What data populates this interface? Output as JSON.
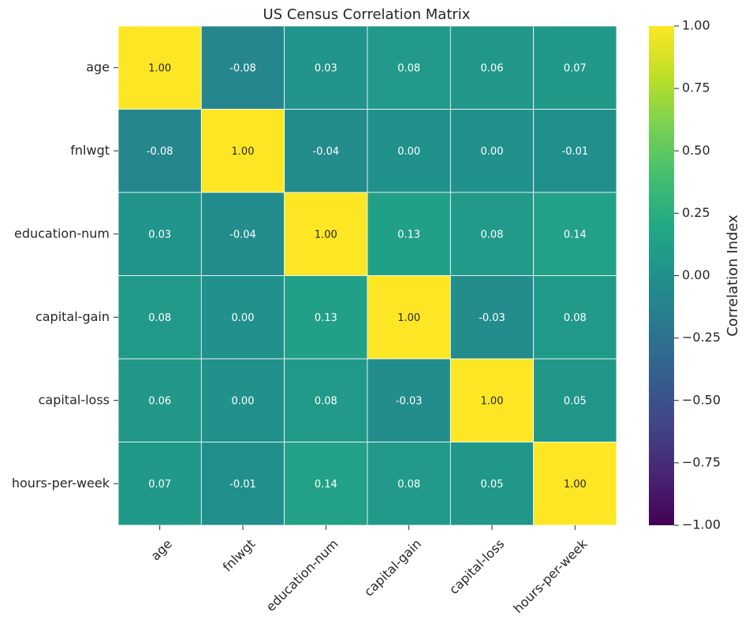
{
  "chart_data": {
    "type": "heatmap",
    "title": "US Census Correlation Matrix",
    "rows": [
      "age",
      "fnlwgt",
      "education-num",
      "capital-gain",
      "capital-loss",
      "hours-per-week"
    ],
    "columns": [
      "age",
      "fnlwgt",
      "education-num",
      "capital-gain",
      "capital-loss",
      "hours-per-week"
    ],
    "values": [
      [
        1.0,
        -0.08,
        0.03,
        0.08,
        0.06,
        0.07
      ],
      [
        -0.08,
        1.0,
        -0.04,
        -0.0,
        -0.0,
        -0.01
      ],
      [
        0.03,
        -0.04,
        1.0,
        0.13,
        0.08,
        0.14
      ],
      [
        0.08,
        -0.0,
        0.13,
        1.0,
        -0.03,
        0.08
      ],
      [
        0.06,
        -0.0,
        0.08,
        -0.03,
        1.0,
        0.05
      ],
      [
        0.07,
        -0.01,
        0.14,
        0.08,
        0.05,
        1.0
      ]
    ],
    "value_format": "0.00",
    "colormap": "viridis",
    "vmin": -1.0,
    "vmax": 1.0,
    "colorbar": {
      "label": "Correlation Index",
      "ticks": [
        "1.00",
        "0.75",
        "0.50",
        "0.25",
        "0.00",
        "−0.25",
        "−0.50",
        "−0.75",
        "−1.00"
      ],
      "tick_values": [
        1.0,
        0.75,
        0.5,
        0.25,
        0.0,
        -0.25,
        -0.5,
        -0.75,
        -1.0
      ]
    },
    "cell_border_color": "#ffffff",
    "text_color_light": "#ffffff",
    "text_color_dark": "#262626"
  }
}
